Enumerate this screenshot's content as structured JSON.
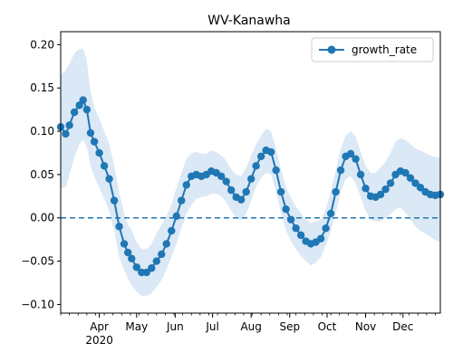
{
  "chart_data": {
    "type": "line",
    "title": "WV-Kanawha",
    "xlabel": "",
    "ylabel": "",
    "xlim": [
      "2020-03-01",
      "2020-12-31"
    ],
    "ylim": [
      -0.11,
      0.215
    ],
    "y_ticks": [
      -0.1,
      -0.05,
      0.0,
      0.05,
      0.1,
      0.15,
      0.2
    ],
    "y_tick_labels": [
      "−0.10",
      "−0.05",
      "0.00",
      "0.05",
      "0.10",
      "0.15",
      "0.20"
    ],
    "x_ticks": [
      "2020-04-01",
      "2020-05-01",
      "2020-06-01",
      "2020-07-01",
      "2020-08-01",
      "2020-09-01",
      "2020-10-01",
      "2020-11-01",
      "2020-12-01"
    ],
    "x_tick_labels": [
      "Apr",
      "May",
      "Jun",
      "Jul",
      "Aug",
      "Sep",
      "Oct",
      "Nov",
      "Dec"
    ],
    "x_year_label": "2020",
    "legend": {
      "entries": [
        "growth_rate"
      ],
      "position": "upper right"
    },
    "reference_line": {
      "y": 0.0,
      "style": "dashed"
    },
    "colors": {
      "series": "#1f77b4",
      "band": "#dbe8f5",
      "axes": "#000000"
    },
    "series": [
      {
        "name": "growth_rate",
        "x": [
          "2020-03-01",
          "2020-03-05",
          "2020-03-08",
          "2020-03-12",
          "2020-03-16",
          "2020-03-19",
          "2020-03-22",
          "2020-03-25",
          "2020-03-28",
          "2020-04-01",
          "2020-04-05",
          "2020-04-09",
          "2020-04-13",
          "2020-04-17",
          "2020-04-21",
          "2020-04-24",
          "2020-04-27",
          "2020-05-01",
          "2020-05-05",
          "2020-05-09",
          "2020-05-13",
          "2020-05-17",
          "2020-05-21",
          "2020-05-25",
          "2020-05-29",
          "2020-06-02",
          "2020-06-06",
          "2020-06-10",
          "2020-06-14",
          "2020-06-18",
          "2020-06-22",
          "2020-06-26",
          "2020-06-30",
          "2020-07-04",
          "2020-07-08",
          "2020-07-12",
          "2020-07-16",
          "2020-07-20",
          "2020-07-24",
          "2020-07-28",
          "2020-08-01",
          "2020-08-05",
          "2020-08-09",
          "2020-08-13",
          "2020-08-17",
          "2020-08-21",
          "2020-08-25",
          "2020-08-29",
          "2020-09-02",
          "2020-09-06",
          "2020-09-10",
          "2020-09-14",
          "2020-09-18",
          "2020-09-22",
          "2020-09-26",
          "2020-09-30",
          "2020-10-04",
          "2020-10-08",
          "2020-10-12",
          "2020-10-16",
          "2020-10-20",
          "2020-10-24",
          "2020-10-28",
          "2020-11-01",
          "2020-11-05",
          "2020-11-09",
          "2020-11-13",
          "2020-11-17",
          "2020-11-21",
          "2020-11-25",
          "2020-11-29",
          "2020-12-03",
          "2020-12-07",
          "2020-12-11",
          "2020-12-15",
          "2020-12-19",
          "2020-12-23",
          "2020-12-27",
          "2020-12-31"
        ],
        "y": [
          0.105,
          0.097,
          0.107,
          0.122,
          0.13,
          0.136,
          0.125,
          0.098,
          0.088,
          0.075,
          0.06,
          0.045,
          0.02,
          -0.01,
          -0.03,
          -0.04,
          -0.047,
          -0.057,
          -0.063,
          -0.063,
          -0.058,
          -0.05,
          -0.042,
          -0.03,
          -0.015,
          0.002,
          0.02,
          0.038,
          0.048,
          0.05,
          0.048,
          0.05,
          0.054,
          0.052,
          0.048,
          0.042,
          0.032,
          0.024,
          0.021,
          0.03,
          0.045,
          0.06,
          0.071,
          0.078,
          0.076,
          0.055,
          0.03,
          0.01,
          -0.002,
          -0.012,
          -0.02,
          -0.027,
          -0.03,
          -0.028,
          -0.024,
          -0.012,
          0.005,
          0.03,
          0.055,
          0.071,
          0.074,
          0.068,
          0.05,
          0.034,
          0.025,
          0.024,
          0.027,
          0.033,
          0.04,
          0.05,
          0.054,
          0.052,
          0.046,
          0.04,
          0.035,
          0.03,
          0.027,
          0.026,
          0.027
        ],
        "lower": [
          0.035,
          0.035,
          0.05,
          0.07,
          0.085,
          0.09,
          0.082,
          0.06,
          0.048,
          0.035,
          0.022,
          0.008,
          -0.015,
          -0.045,
          -0.06,
          -0.07,
          -0.078,
          -0.085,
          -0.09,
          -0.09,
          -0.087,
          -0.08,
          -0.072,
          -0.06,
          -0.045,
          -0.03,
          -0.012,
          0.005,
          0.015,
          0.022,
          0.024,
          0.025,
          0.028,
          0.028,
          0.025,
          0.018,
          0.008,
          0.0,
          -0.003,
          0.005,
          0.02,
          0.036,
          0.046,
          0.052,
          0.05,
          0.03,
          0.006,
          -0.014,
          -0.027,
          -0.036,
          -0.044,
          -0.05,
          -0.055,
          -0.052,
          -0.045,
          -0.032,
          -0.016,
          0.006,
          0.03,
          0.045,
          0.048,
          0.04,
          0.024,
          0.008,
          -0.002,
          -0.004,
          -0.004,
          0.0,
          0.004,
          0.01,
          0.012,
          0.006,
          -0.002,
          -0.01,
          -0.015,
          -0.018,
          -0.022,
          -0.026,
          -0.028
        ],
        "upper": [
          0.165,
          0.17,
          0.178,
          0.19,
          0.195,
          0.195,
          0.182,
          0.145,
          0.128,
          0.115,
          0.1,
          0.085,
          0.06,
          0.03,
          0.005,
          -0.008,
          -0.014,
          -0.028,
          -0.036,
          -0.036,
          -0.03,
          -0.018,
          -0.008,
          0.002,
          0.015,
          0.035,
          0.052,
          0.068,
          0.075,
          0.076,
          0.074,
          0.074,
          0.078,
          0.076,
          0.072,
          0.066,
          0.056,
          0.05,
          0.048,
          0.058,
          0.072,
          0.085,
          0.095,
          0.103,
          0.1,
          0.08,
          0.056,
          0.035,
          0.023,
          0.013,
          0.005,
          -0.002,
          -0.006,
          -0.004,
          -0.002,
          0.01,
          0.03,
          0.055,
          0.08,
          0.095,
          0.1,
          0.094,
          0.076,
          0.06,
          0.052,
          0.052,
          0.058,
          0.065,
          0.075,
          0.088,
          0.092,
          0.09,
          0.085,
          0.08,
          0.078,
          0.075,
          0.072,
          0.07,
          0.07
        ]
      }
    ]
  }
}
